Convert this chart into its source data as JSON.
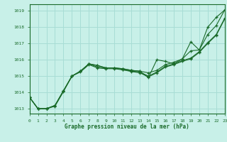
{
  "title": "Graphe pression niveau de la mer (hPa)",
  "bg_color": "#c8f0e8",
  "grid_color": "#a8ddd5",
  "line_color": "#1a6b2a",
  "xlim": [
    0,
    23
  ],
  "ylim": [
    1012.7,
    1019.4
  ],
  "yticks": [
    1013,
    1014,
    1015,
    1016,
    1017,
    1018,
    1019
  ],
  "xticks": [
    0,
    1,
    2,
    3,
    4,
    5,
    6,
    7,
    8,
    9,
    10,
    11,
    12,
    13,
    14,
    15,
    16,
    17,
    18,
    19,
    20,
    21,
    22,
    23
  ],
  "lines": [
    [
      1013.7,
      1013.0,
      1013.0,
      1013.2,
      1014.1,
      1015.0,
      1015.3,
      1015.75,
      1015.65,
      1015.5,
      1015.5,
      1015.45,
      1015.35,
      1015.3,
      1014.9,
      1016.0,
      1015.9,
      1015.75,
      1016.05,
      1017.1,
      1016.6,
      1018.0,
      1018.6,
      1019.05
    ],
    [
      1013.7,
      1013.0,
      1013.0,
      1013.2,
      1014.1,
      1015.0,
      1015.3,
      1015.75,
      1015.65,
      1015.5,
      1015.5,
      1015.45,
      1015.35,
      1015.3,
      1015.2,
      1015.35,
      1015.7,
      1015.85,
      1016.05,
      1016.55,
      1016.6,
      1017.55,
      1018.1,
      1019.05
    ],
    [
      1013.7,
      1013.0,
      1013.0,
      1013.2,
      1014.1,
      1015.0,
      1015.3,
      1015.75,
      1015.55,
      1015.5,
      1015.5,
      1015.4,
      1015.3,
      1015.25,
      1015.0,
      1015.25,
      1015.6,
      1015.75,
      1015.95,
      1016.1,
      1016.5,
      1017.05,
      1017.55,
      1018.55
    ],
    [
      1013.7,
      1013.0,
      1013.0,
      1013.15,
      1014.05,
      1015.0,
      1015.25,
      1015.7,
      1015.5,
      1015.45,
      1015.45,
      1015.38,
      1015.28,
      1015.2,
      1014.95,
      1015.2,
      1015.55,
      1015.7,
      1015.9,
      1016.05,
      1016.45,
      1017.0,
      1017.5,
      1018.5
    ]
  ]
}
